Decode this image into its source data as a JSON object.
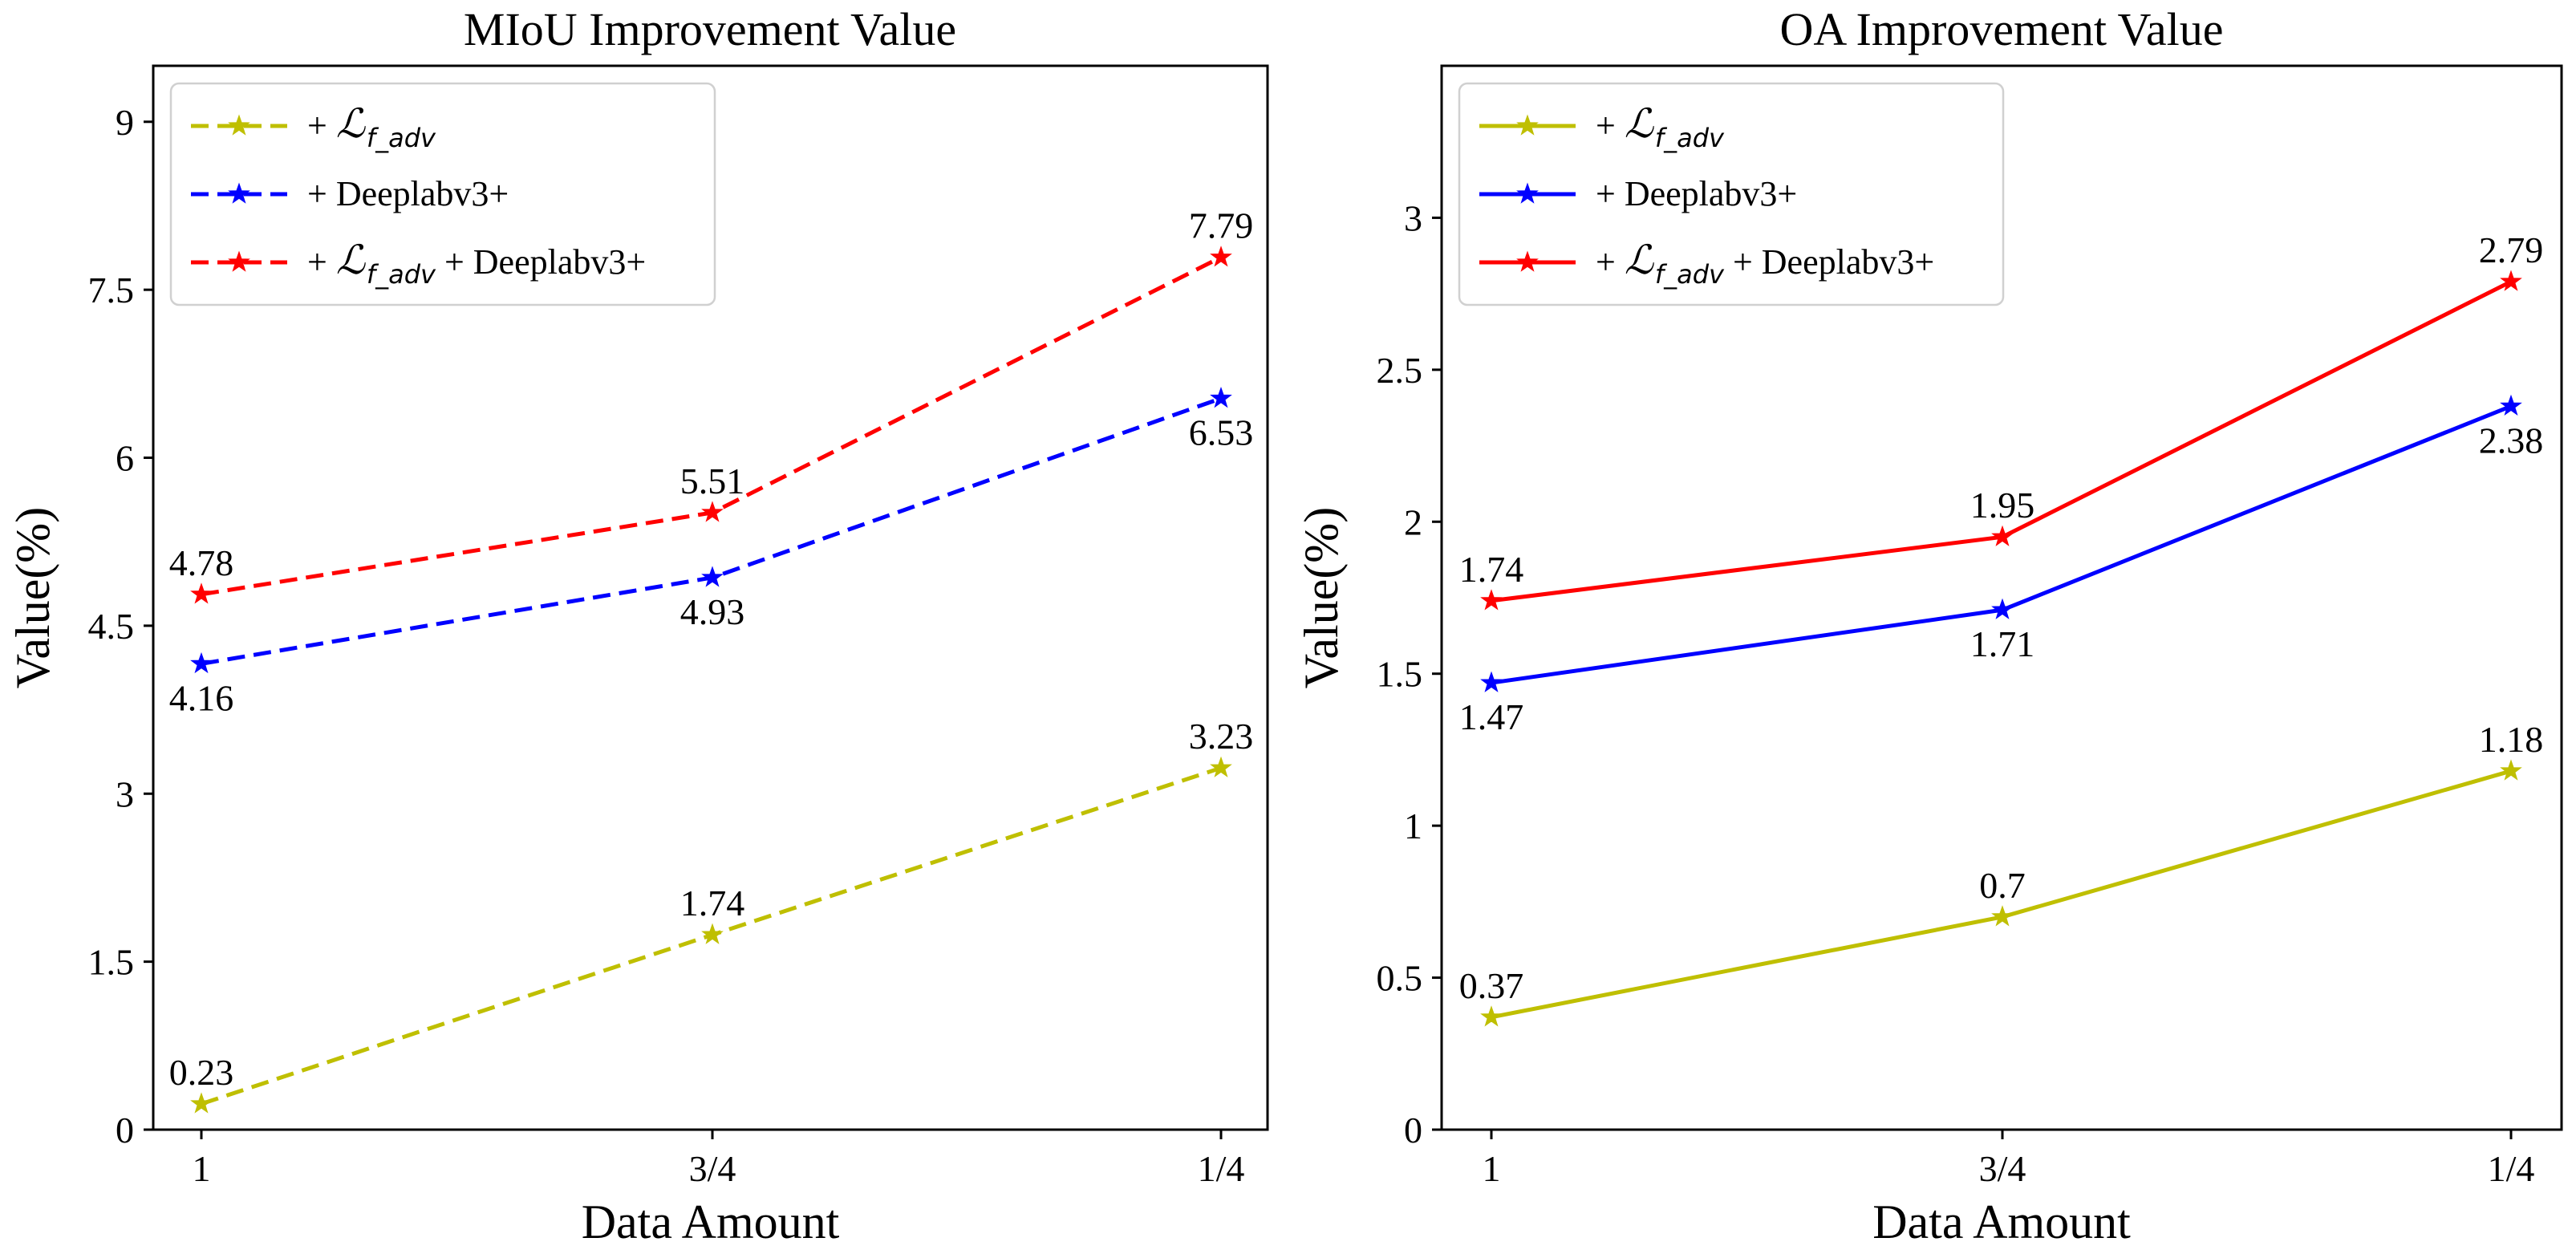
{
  "chart_data": [
    {
      "type": "line",
      "title": "MIoU Improvement Value",
      "xlabel": "Data Amount",
      "ylabel": "Value(%)",
      "categories": [
        "1",
        "3/4",
        "1/4"
      ],
      "ylim": [
        0,
        9.5
      ],
      "yticks": [
        0,
        1.5,
        3,
        4.5,
        6,
        7.5,
        9
      ],
      "ytick_labels": [
        "0",
        "1.5",
        "3",
        "4.5",
        "6",
        "7.5",
        "9"
      ],
      "line_style": "dashed",
      "marker": "star",
      "grid": false,
      "legend_position": "upper-left",
      "series": [
        {
          "legend": {
            "prefix": "+ ",
            "symbol": "ℒ",
            "sub": "f_adv",
            "suffix": ""
          },
          "color": "#bfbf00",
          "values": [
            0.23,
            1.74,
            3.23
          ],
          "labels": [
            "0.23",
            "1.74",
            "3.23"
          ],
          "label_pos": [
            "above",
            "above",
            "above"
          ]
        },
        {
          "legend": {
            "prefix": "+ Deeplabv3+",
            "symbol": "",
            "sub": "",
            "suffix": ""
          },
          "color": "#0000ff",
          "values": [
            4.16,
            4.93,
            6.53
          ],
          "labels": [
            "4.16",
            "4.93",
            "6.53"
          ],
          "label_pos": [
            "below",
            "below",
            "below"
          ]
        },
        {
          "legend": {
            "prefix": "+ ",
            "symbol": "ℒ",
            "sub": "f_adv",
            "suffix": " + Deeplabv3+"
          },
          "color": "#ff0000",
          "values": [
            4.78,
            5.51,
            7.79
          ],
          "labels": [
            "4.78",
            "5.51",
            "7.79"
          ],
          "label_pos": [
            "above",
            "above",
            "above"
          ]
        }
      ]
    },
    {
      "type": "line",
      "title": "OA Improvement Value",
      "xlabel": "Data Amount",
      "ylabel": "Value(%)",
      "categories": [
        "1",
        "3/4",
        "1/4"
      ],
      "ylim": [
        0,
        3.5
      ],
      "yticks": [
        0,
        0.5,
        1,
        1.5,
        2,
        2.5,
        3
      ],
      "ytick_labels": [
        "0",
        "0.5",
        "1",
        "1.5",
        "2",
        "2.5",
        "3"
      ],
      "line_style": "solid",
      "marker": "star",
      "grid": false,
      "legend_position": "upper-left",
      "series": [
        {
          "legend": {
            "prefix": "+ ",
            "symbol": "ℒ",
            "sub": "f_adv",
            "suffix": ""
          },
          "color": "#bfbf00",
          "values": [
            0.37,
            0.7,
            1.18
          ],
          "labels": [
            "0.37",
            "0.7",
            "1.18"
          ],
          "label_pos": [
            "above",
            "above",
            "above"
          ]
        },
        {
          "legend": {
            "prefix": "+ Deeplabv3+",
            "symbol": "",
            "sub": "",
            "suffix": ""
          },
          "color": "#0000ff",
          "values": [
            1.47,
            1.71,
            2.38
          ],
          "labels": [
            "1.47",
            "1.71",
            "2.38"
          ],
          "label_pos": [
            "below",
            "below",
            "below"
          ]
        },
        {
          "legend": {
            "prefix": "+ ",
            "symbol": "ℒ",
            "sub": "f_adv",
            "suffix": " + Deeplabv3+"
          },
          "color": "#ff0000",
          "values": [
            1.74,
            1.95,
            2.79
          ],
          "labels": [
            "1.74",
            "1.95",
            "2.79"
          ],
          "label_pos": [
            "above",
            "above",
            "above"
          ]
        }
      ]
    }
  ]
}
